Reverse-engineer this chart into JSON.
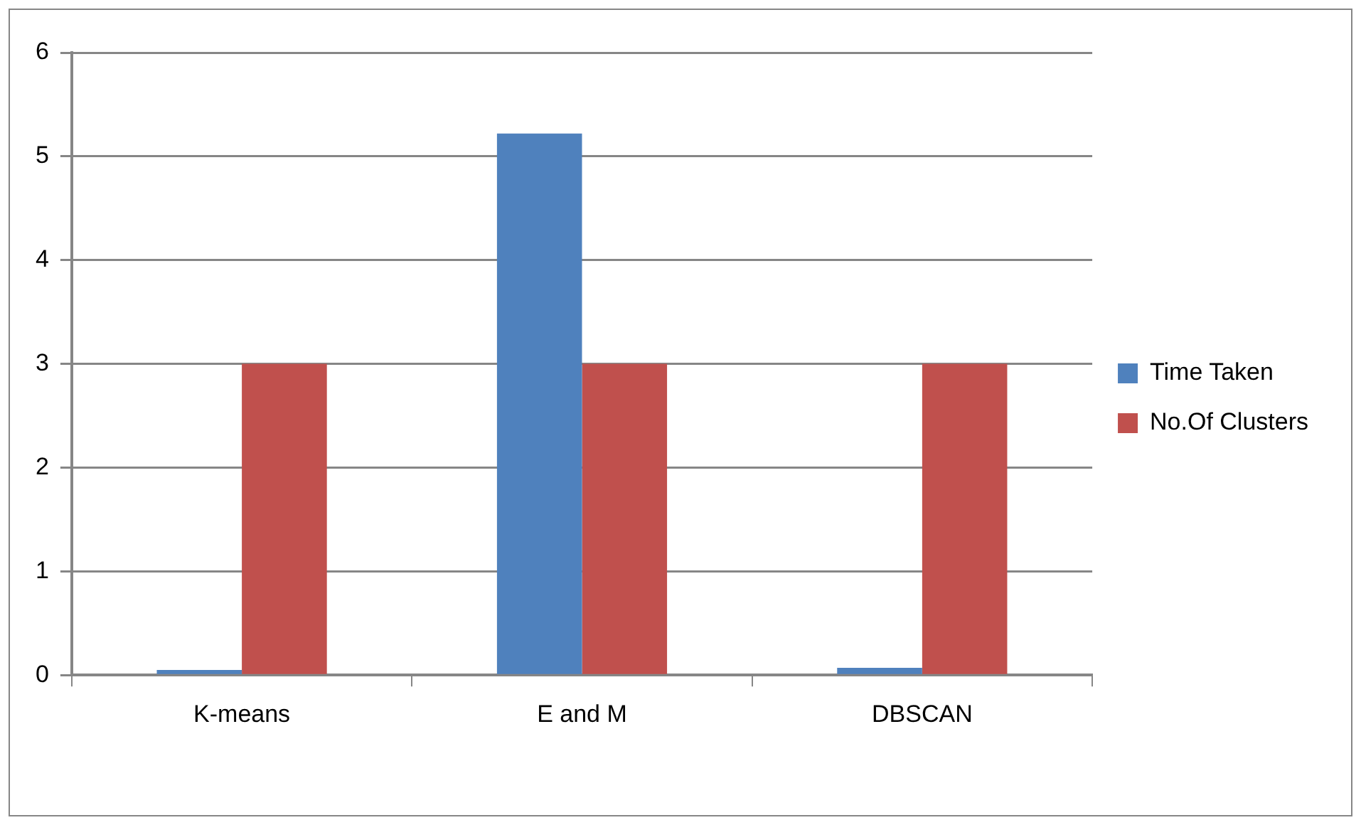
{
  "chart_data": {
    "type": "bar",
    "categories": [
      "K-means",
      "E and M",
      "DBSCAN"
    ],
    "series": [
      {
        "name": "Time Taken",
        "color": "#4f81bd",
        "values": [
          0.05,
          5.22,
          0.07
        ]
      },
      {
        "name": "No.Of Clusters",
        "color": "#c0504d",
        "values": [
          3,
          3,
          3
        ]
      }
    ],
    "ylim": [
      0,
      6
    ],
    "yticks": [
      0,
      1,
      2,
      3,
      4,
      5,
      6
    ],
    "grid": "y",
    "legend": "right"
  }
}
